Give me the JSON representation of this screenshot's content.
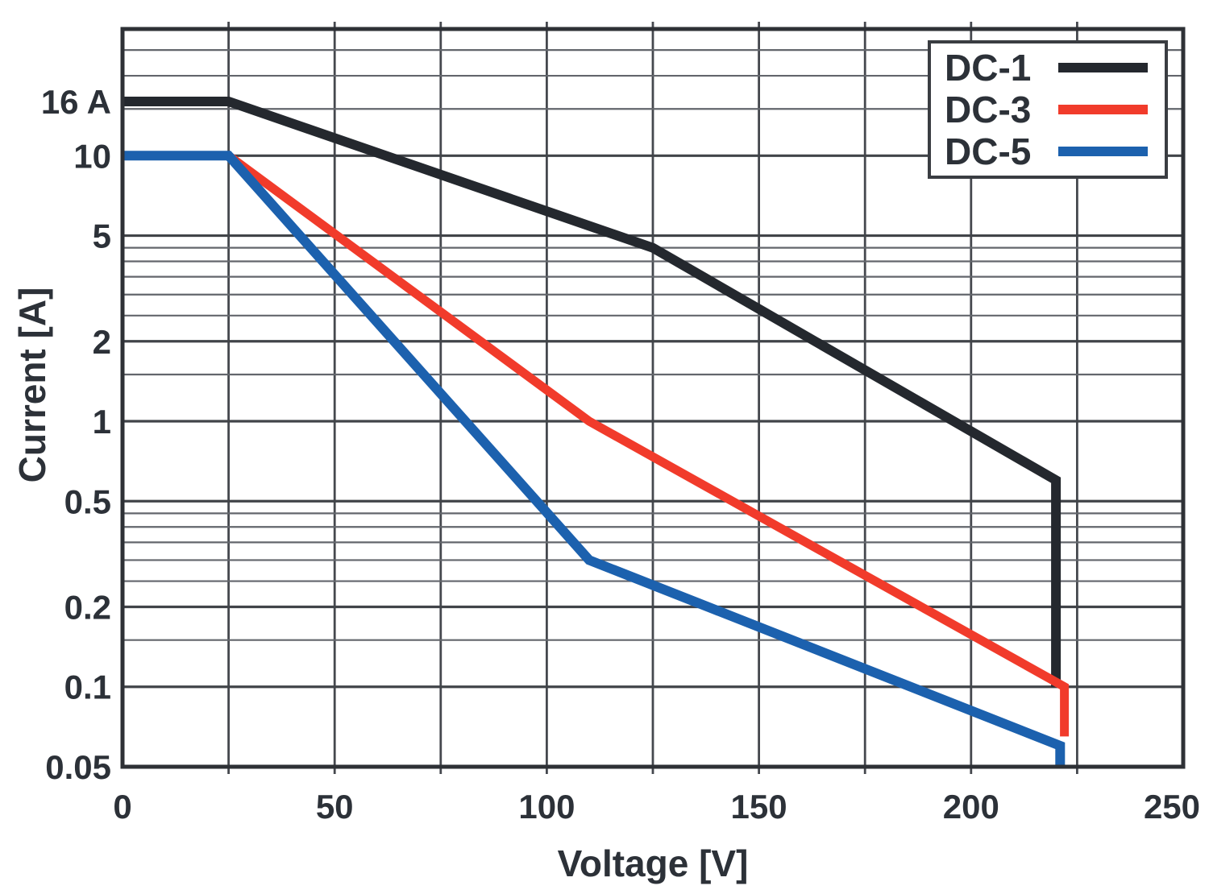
{
  "chart_data": {
    "type": "line",
    "title": "",
    "xlabel": "Voltage [V]",
    "ylabel": "Current [A]",
    "x_axis": {
      "scale": "linear",
      "min": 0,
      "max": 250,
      "tick_values": [
        0,
        50,
        100,
        150,
        200,
        250
      ],
      "tick_labels": [
        "0",
        "50",
        "100",
        "150",
        "200",
        "250"
      ],
      "gridline_step": 25,
      "gridline_values": [
        25,
        50,
        75,
        100,
        125,
        150,
        175,
        200,
        225
      ]
    },
    "y_axis": {
      "scale": "log",
      "min": 0.05,
      "max": 30,
      "tick_values": [
        16,
        10,
        5,
        2,
        1,
        0.5,
        0.2,
        0.1,
        0.05
      ],
      "tick_labels": [
        "16 A",
        "10",
        "5",
        "2",
        "1",
        "0.5",
        "0.2",
        "0.1",
        "0.05"
      ],
      "major_gridlines": [
        0.1,
        0.2,
        0.5,
        1,
        2,
        5,
        10
      ],
      "minor_gridlines": [
        0.15,
        0.25,
        0.3,
        0.35,
        0.4,
        0.45,
        1.5,
        2.5,
        3,
        3.5,
        4,
        4.5,
        15,
        20,
        25
      ]
    },
    "grid": true,
    "series": [
      {
        "name": "DC-1",
        "color": "#24282e",
        "line_width": 12,
        "points": [
          [
            0,
            16
          ],
          [
            25,
            16
          ],
          [
            125,
            4.5
          ],
          [
            220,
            0.6
          ],
          [
            220,
            0.1
          ]
        ]
      },
      {
        "name": "DC-3",
        "color": "#f13b2b",
        "line_width": 11,
        "points": [
          [
            0,
            10
          ],
          [
            25,
            10
          ],
          [
            110,
            1.0
          ],
          [
            222,
            0.1
          ],
          [
            222,
            0.065
          ]
        ]
      },
      {
        "name": "DC-5",
        "color": "#1c61ae",
        "line_width": 12,
        "points": [
          [
            0,
            10
          ],
          [
            25,
            10
          ],
          [
            110,
            0.3
          ],
          [
            221,
            0.06
          ],
          [
            221,
            0.05
          ]
        ]
      }
    ],
    "legend": {
      "position": "top-right",
      "entries": [
        {
          "label": "DC-1",
          "color": "#24282e"
        },
        {
          "label": "DC-3",
          "color": "#f13b2b"
        },
        {
          "label": "DC-5",
          "color": "#1c61ae"
        }
      ]
    },
    "colors": {
      "background": "#ffffff",
      "border": "#2e3136",
      "grid_major": "#414449",
      "grid_minor": "#63666c",
      "text": "#2c3138"
    }
  }
}
